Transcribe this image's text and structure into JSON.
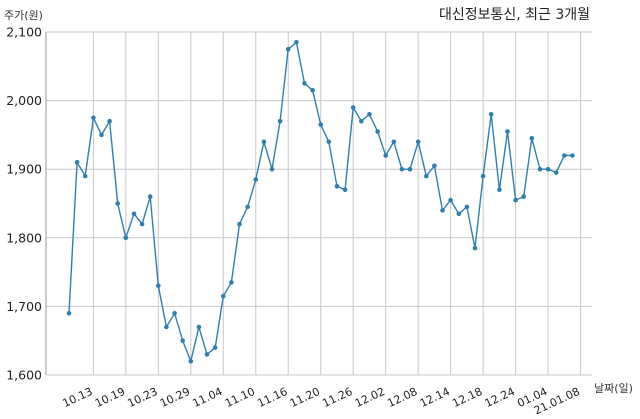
{
  "chart_data": {
    "type": "line",
    "title": "대신정보통신, 최근 3개월",
    "ylabel": "주가(원)",
    "xlabel": "날짜(일)",
    "ylim": [
      1600,
      2100
    ],
    "yticks": [
      1600,
      1700,
      1800,
      1900,
      2000,
      2100
    ],
    "ytick_labels": [
      "1,600",
      "1,700",
      "1,800",
      "1,900",
      "2,000",
      "2,100"
    ],
    "grid": true,
    "color": "#2e7fb0",
    "xtick_labels": [
      "10.13",
      "10.19",
      "10.23",
      "10.29",
      "11.04",
      "11.10",
      "11.16",
      "11.20",
      "11.26",
      "12.02",
      "12.08",
      "12.14",
      "12.18",
      "12.24",
      "01.04",
      "21.01.08"
    ],
    "xtick_index": [
      3,
      7,
      11,
      15,
      19,
      23,
      27,
      31,
      35,
      39,
      43,
      47,
      51,
      55,
      59,
      63
    ],
    "values": [
      1690,
      1910,
      1890,
      1975,
      1950,
      1970,
      1850,
      1800,
      1835,
      1820,
      1860,
      1730,
      1670,
      1690,
      1650,
      1620,
      1670,
      1630,
      1640,
      1715,
      1735,
      1820,
      1845,
      1885,
      1940,
      1900,
      1970,
      2075,
      2085,
      2025,
      2015,
      1965,
      1940,
      1875,
      1870,
      1990,
      1970,
      1980,
      1955,
      1920,
      1940,
      1900,
      1900,
      1940,
      1890,
      1905,
      1840,
      1855,
      1835,
      1845,
      1785,
      1890,
      1980,
      1870,
      1955,
      1855,
      1860,
      1945,
      1900,
      1900,
      1895,
      1920,
      1920
    ]
  }
}
